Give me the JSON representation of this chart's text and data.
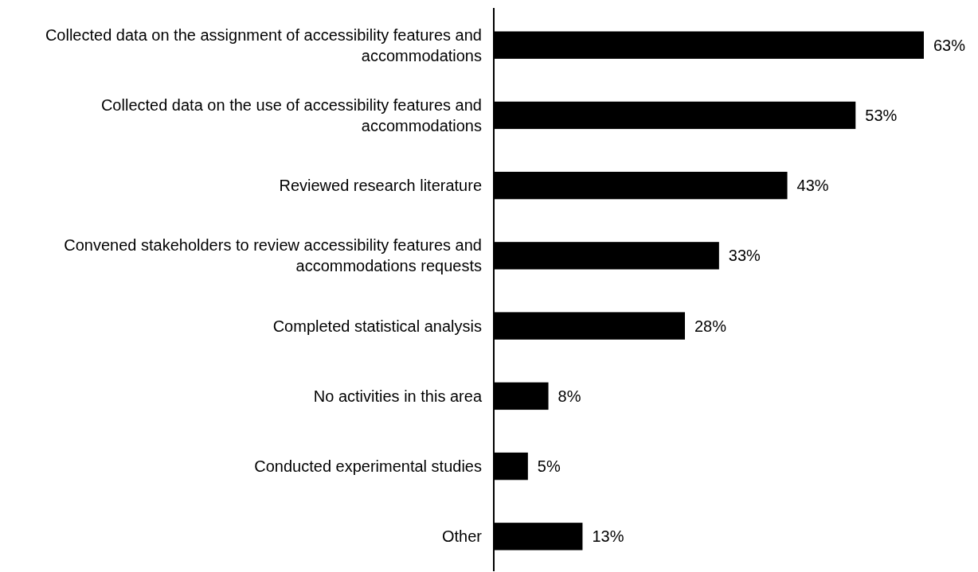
{
  "chart_data": {
    "type": "bar",
    "orientation": "horizontal",
    "categories": [
      "Collected data on the assignment of accessibility features and accommodations",
      "Collected data on the use of accessibility features and accommodations",
      "Reviewed research literature",
      "Convened stakeholders to review accessibility features and accommodations requests",
      "Completed statistical analysis",
      "No activities in this area",
      "Conducted experimental studies",
      "Other"
    ],
    "values": [
      63,
      53,
      43,
      33,
      28,
      8,
      5,
      13
    ],
    "value_labels": [
      "63%",
      "53%",
      "43%",
      "33%",
      "28%",
      "8%",
      "5%",
      "13%"
    ],
    "color": "#000000"
  }
}
